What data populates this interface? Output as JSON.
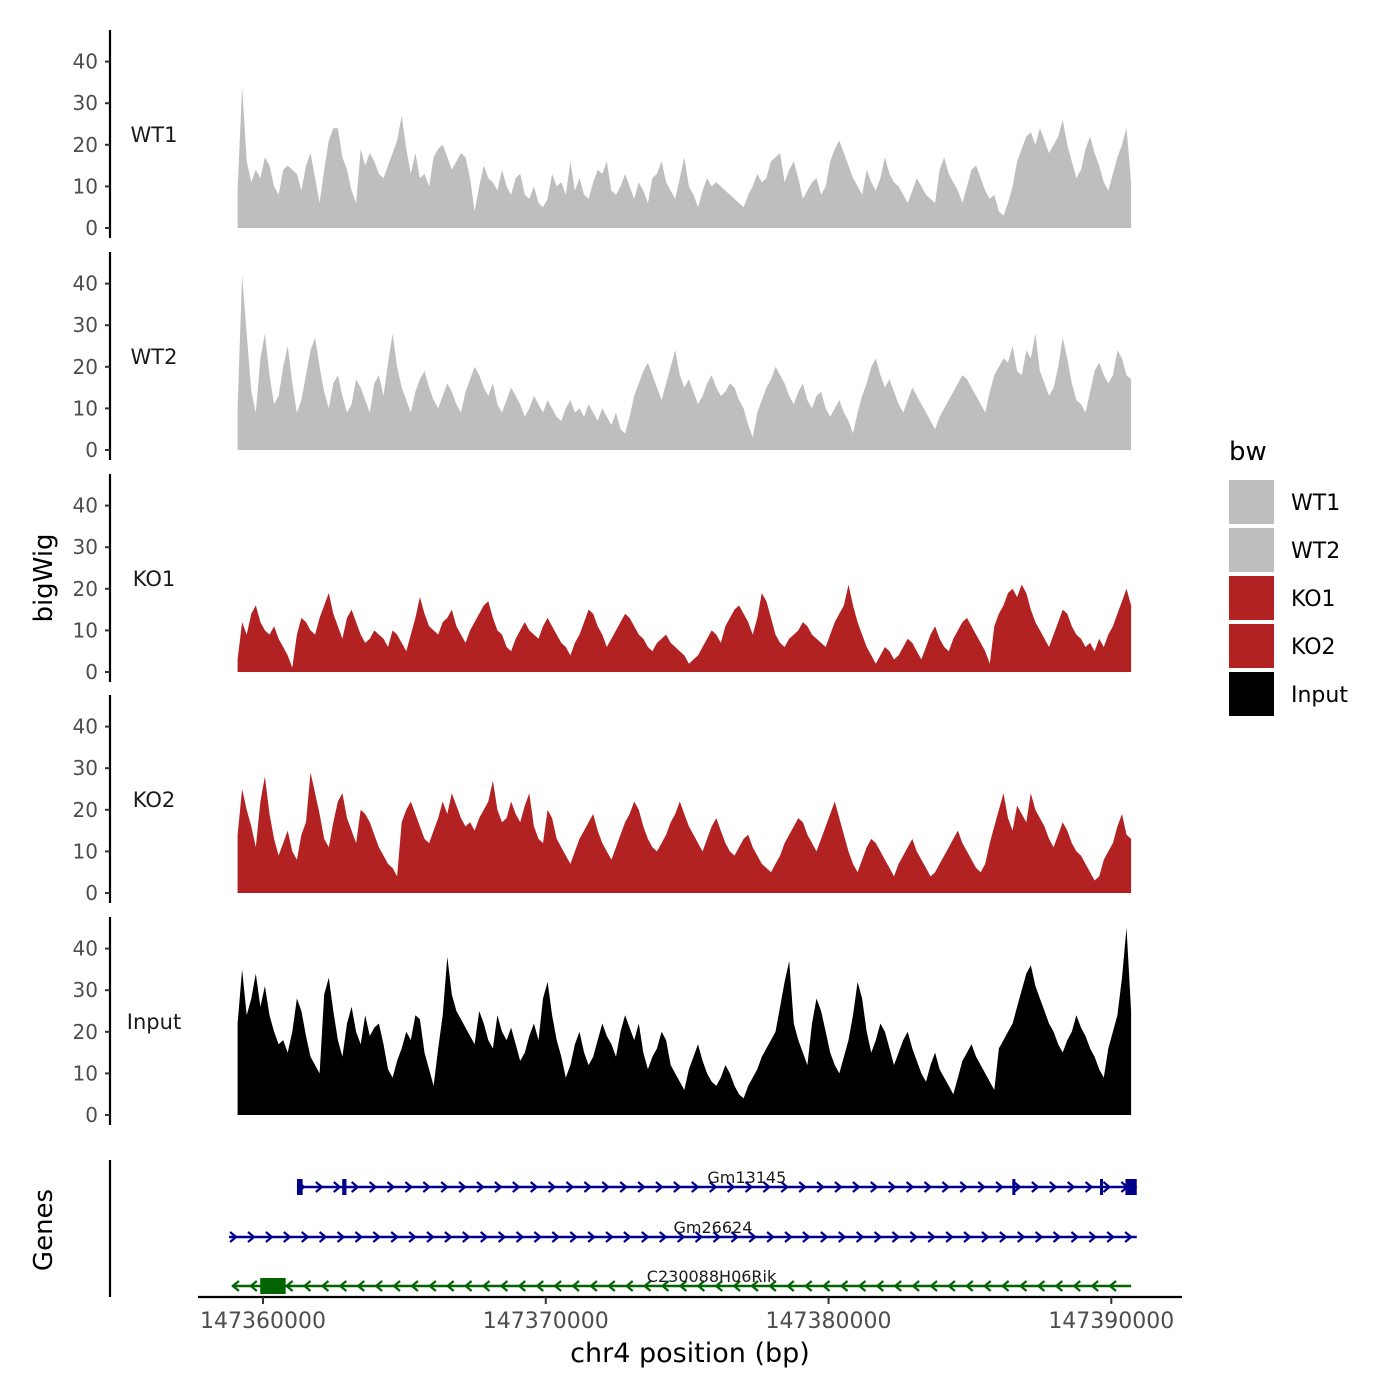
{
  "chart_data": {
    "type": "area",
    "title": "",
    "ylabel": "bigWig",
    "genes_label": "Genes",
    "xlabel": "chr4 position (bp)",
    "legend_title": "bw",
    "legend_position": "right",
    "ylim": [
      0,
      45
    ],
    "y_ticks": [
      "0",
      "10",
      "20",
      "30",
      "40"
    ],
    "xlim": [
      147357700,
      147392500
    ],
    "x_ticks": [
      {
        "value": 147360000,
        "label": "147360000"
      },
      {
        "value": 147370000,
        "label": "147370000"
      },
      {
        "value": 147380000,
        "label": "147380000"
      },
      {
        "value": 147390000,
        "label": "147390000"
      }
    ],
    "region": [
      147359100,
      147390700
    ],
    "colors": {
      "WT": "#bebebe",
      "KO": "#b22222",
      "Input": "#000000",
      "gene_plus": "#00008b",
      "gene_minus": "#006400"
    },
    "series": [
      {
        "name": "WT1",
        "color": "#bebebe",
        "values": [
          9,
          34,
          16,
          11,
          14,
          12,
          17,
          15,
          10,
          8,
          14,
          15,
          14,
          13,
          9,
          15,
          18,
          12,
          6,
          14,
          21,
          24,
          24,
          17,
          14,
          9,
          6,
          19,
          15,
          18,
          16,
          13,
          12,
          15,
          18,
          21,
          27,
          19,
          13,
          18,
          12,
          13,
          10,
          17,
          19,
          20,
          17,
          14,
          16,
          18,
          17,
          12,
          4,
          10,
          15,
          12,
          11,
          9,
          14,
          10,
          8,
          12,
          13,
          8,
          7,
          10,
          6,
          5,
          7,
          13,
          10,
          11,
          8,
          16,
          9,
          12,
          8,
          7,
          11,
          14,
          13,
          16,
          9,
          8,
          10,
          13,
          10,
          7,
          11,
          9,
          6,
          12,
          13,
          16,
          11,
          9,
          7,
          12,
          17,
          10,
          8,
          5,
          9,
          12,
          10,
          11,
          10,
          9,
          8,
          7,
          6,
          5,
          8,
          10,
          13,
          11,
          12,
          16,
          17,
          18,
          11,
          14,
          16,
          12,
          7,
          9,
          11,
          12,
          8,
          10,
          16,
          19,
          21,
          18,
          15,
          12,
          10,
          8,
          14,
          11,
          9,
          12,
          17,
          13,
          11,
          10,
          8,
          6,
          9,
          12,
          10,
          8,
          7,
          6,
          14,
          17,
          13,
          11,
          9,
          6,
          10,
          14,
          15,
          12,
          9,
          7,
          8,
          4,
          3,
          6,
          10,
          16,
          19,
          22,
          23,
          20,
          24,
          21,
          18,
          20,
          22,
          26,
          20,
          16,
          12,
          14,
          19,
          22,
          18,
          15,
          11,
          9,
          13,
          17,
          20,
          24,
          11
        ]
      },
      {
        "name": "WT2",
        "color": "#bebebe",
        "values": [
          10,
          42,
          28,
          14,
          9,
          22,
          28,
          18,
          11,
          13,
          20,
          25,
          16,
          9,
          12,
          18,
          24,
          27,
          20,
          14,
          10,
          16,
          18,
          13,
          9,
          11,
          17,
          15,
          12,
          9,
          16,
          18,
          13,
          21,
          28,
          20,
          15,
          12,
          9,
          14,
          17,
          19,
          15,
          12,
          10,
          13,
          16,
          14,
          11,
          9,
          14,
          17,
          20,
          18,
          15,
          13,
          16,
          11,
          9,
          12,
          15,
          13,
          11,
          8,
          10,
          13,
          11,
          9,
          12,
          10,
          8,
          7,
          10,
          12,
          9,
          10,
          8,
          11,
          9,
          7,
          10,
          8,
          6,
          9,
          5,
          4,
          8,
          13,
          16,
          19,
          21,
          18,
          15,
          12,
          16,
          20,
          24,
          18,
          15,
          17,
          14,
          11,
          13,
          16,
          18,
          15,
          13,
          14,
          16,
          15,
          12,
          10,
          6,
          3,
          9,
          12,
          15,
          17,
          20,
          18,
          16,
          13,
          11,
          14,
          16,
          12,
          10,
          13,
          14,
          10,
          8,
          10,
          12,
          9,
          7,
          4,
          9,
          13,
          16,
          20,
          22,
          18,
          15,
          17,
          14,
          11,
          9,
          12,
          15,
          13,
          11,
          9,
          7,
          5,
          8,
          10,
          12,
          14,
          16,
          18,
          17,
          15,
          13,
          11,
          9,
          14,
          18,
          20,
          22,
          21,
          25,
          19,
          18,
          24,
          22,
          28,
          19,
          16,
          13,
          15,
          20,
          27,
          22,
          16,
          12,
          11,
          9,
          14,
          19,
          21,
          18,
          16,
          18,
          24,
          22,
          18,
          17
        ]
      },
      {
        "name": "KO1",
        "color": "#b22222",
        "values": [
          3,
          12,
          9,
          14,
          16,
          12,
          10,
          9,
          11,
          8,
          6,
          4,
          1,
          9,
          13,
          12,
          10,
          9,
          13,
          16,
          19,
          14,
          11,
          8,
          13,
          15,
          12,
          9,
          7,
          8,
          10,
          9,
          8,
          6,
          10,
          9,
          7,
          5,
          9,
          13,
          18,
          14,
          11,
          10,
          9,
          12,
          13,
          15,
          11,
          9,
          7,
          10,
          12,
          14,
          16,
          17,
          13,
          10,
          9,
          6,
          5,
          8,
          10,
          12,
          10,
          9,
          8,
          11,
          13,
          11,
          9,
          7,
          6,
          4,
          7,
          9,
          12,
          15,
          14,
          11,
          9,
          6,
          8,
          10,
          12,
          14,
          13,
          11,
          9,
          8,
          6,
          5,
          7,
          8,
          9,
          7,
          6,
          5,
          4,
          2,
          3,
          4,
          6,
          8,
          10,
          9,
          7,
          11,
          13,
          15,
          16,
          14,
          12,
          9,
          13,
          19,
          17,
          13,
          9,
          7,
          6,
          8,
          9,
          10,
          12,
          11,
          9,
          8,
          7,
          6,
          9,
          12,
          14,
          16,
          21,
          16,
          12,
          9,
          6,
          4,
          2,
          4,
          6,
          5,
          3,
          4,
          6,
          8,
          7,
          5,
          3,
          6,
          9,
          11,
          8,
          6,
          5,
          8,
          10,
          12,
          13,
          11,
          9,
          7,
          5,
          2,
          11,
          14,
          16,
          19,
          20,
          18,
          21,
          19,
          15,
          12,
          10,
          8,
          6,
          9,
          12,
          15,
          14,
          11,
          9,
          8,
          6,
          7,
          5,
          8,
          6,
          9,
          11,
          14,
          17,
          20,
          16
        ]
      },
      {
        "name": "KO2",
        "color": "#b22222",
        "values": [
          14,
          25,
          20,
          16,
          11,
          22,
          28,
          19,
          13,
          9,
          12,
          15,
          10,
          8,
          14,
          17,
          29,
          24,
          19,
          13,
          11,
          17,
          22,
          24,
          18,
          15,
          12,
          20,
          19,
          17,
          14,
          11,
          9,
          7,
          6,
          4,
          17,
          20,
          22,
          19,
          16,
          13,
          12,
          15,
          18,
          22,
          19,
          24,
          21,
          18,
          16,
          17,
          15,
          18,
          20,
          22,
          27,
          20,
          17,
          18,
          22,
          19,
          17,
          21,
          24,
          16,
          13,
          12,
          20,
          18,
          13,
          11,
          9,
          7,
          10,
          13,
          15,
          17,
          19,
          15,
          12,
          10,
          8,
          11,
          14,
          17,
          19,
          22,
          20,
          16,
          13,
          11,
          10,
          12,
          14,
          17,
          19,
          22,
          19,
          16,
          14,
          12,
          10,
          13,
          16,
          18,
          15,
          12,
          10,
          9,
          11,
          13,
          14,
          11,
          9,
          7,
          6,
          5,
          7,
          9,
          12,
          14,
          16,
          18,
          17,
          14,
          12,
          10,
          13,
          16,
          19,
          22,
          18,
          14,
          10,
          7,
          5,
          8,
          11,
          13,
          12,
          10,
          8,
          6,
          4,
          7,
          9,
          11,
          13,
          10,
          8,
          6,
          4,
          5,
          7,
          9,
          11,
          13,
          15,
          12,
          10,
          8,
          6,
          5,
          7,
          12,
          16,
          20,
          24,
          18,
          15,
          21,
          19,
          17,
          24,
          20,
          18,
          16,
          13,
          11,
          14,
          17,
          15,
          12,
          10,
          9,
          7,
          5,
          3,
          4,
          8,
          10,
          12,
          16,
          19,
          14,
          13
        ]
      },
      {
        "name": "Input",
        "color": "#000000",
        "values": [
          22,
          35,
          24,
          28,
          34,
          26,
          31,
          24,
          20,
          17,
          18,
          15,
          20,
          28,
          25,
          19,
          14,
          12,
          10,
          29,
          33,
          25,
          18,
          14,
          22,
          26,
          20,
          17,
          24,
          19,
          21,
          22,
          17,
          11,
          9,
          13,
          16,
          20,
          18,
          24,
          23,
          15,
          11,
          7,
          16,
          24,
          38,
          29,
          25,
          23,
          21,
          19,
          17,
          25,
          22,
          18,
          16,
          24,
          20,
          18,
          21,
          17,
          13,
          15,
          19,
          22,
          18,
          28,
          32,
          24,
          18,
          14,
          9,
          12,
          17,
          20,
          15,
          12,
          14,
          18,
          22,
          19,
          17,
          14,
          20,
          24,
          21,
          18,
          22,
          15,
          11,
          14,
          16,
          20,
          18,
          12,
          10,
          8,
          6,
          11,
          14,
          17,
          13,
          10,
          8,
          7,
          9,
          12,
          10,
          7,
          5,
          4,
          7,
          9,
          11,
          14,
          16,
          18,
          20,
          26,
          32,
          37,
          22,
          18,
          15,
          12,
          22,
          28,
          25,
          20,
          15,
          12,
          10,
          14,
          18,
          24,
          32,
          28,
          20,
          15,
          18,
          22,
          20,
          16,
          12,
          15,
          18,
          20,
          16,
          13,
          10,
          8,
          12,
          15,
          11,
          9,
          7,
          5,
          9,
          13,
          15,
          17,
          14,
          12,
          10,
          8,
          6,
          16,
          18,
          20,
          22,
          26,
          30,
          34,
          36,
          31,
          28,
          25,
          22,
          20,
          17,
          15,
          18,
          20,
          24,
          21,
          19,
          16,
          14,
          11,
          9,
          16,
          20,
          24,
          33,
          45,
          25
        ]
      }
    ],
    "genes": [
      {
        "name": "Gm13145",
        "strand": "+",
        "color": "#00008b",
        "start": 147361200,
        "end": 147390900,
        "exons": [
          {
            "start": 147361200,
            "end": 147361400
          },
          {
            "start": 147362800,
            "end": 147362950
          },
          {
            "start": 147386500,
            "end": 147386600
          },
          {
            "start": 147389600,
            "end": 147389700
          },
          {
            "start": 147390500,
            "end": 147390900
          }
        ]
      },
      {
        "name": "Gm26624",
        "strand": "+",
        "color": "#00008b",
        "start": 147358800,
        "end": 147390900,
        "exons": []
      },
      {
        "name": "C230088H06Rik",
        "strand": "-",
        "color": "#006400",
        "start": 147358900,
        "end": 147390700,
        "exons": [
          {
            "start": 147359900,
            "end": 147360800
          }
        ]
      }
    ]
  }
}
